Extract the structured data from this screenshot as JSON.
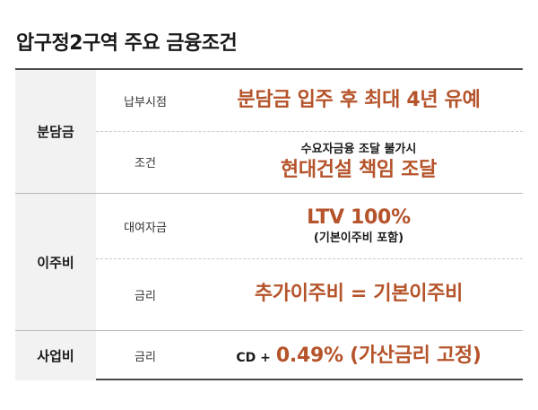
{
  "title": "압구정2구역 주요 금융조건",
  "sections": [
    {
      "category": "분담금",
      "rows": [
        {
          "label": "납부시점",
          "main": "분담금 입주 후 최대 4년 유예"
        },
        {
          "label": "조건",
          "note": "수요자금융 조달 불가시",
          "main": "현대건설 책임 조달"
        }
      ]
    },
    {
      "category": "이주비",
      "rows": [
        {
          "label": "대여자금",
          "main": "LTV 100%",
          "note": "(기본이주비 포함)"
        },
        {
          "label": "금리",
          "main": "추가이주비 = 기본이주비"
        }
      ]
    },
    {
      "category": "사업비",
      "rows": [
        {
          "label": "금리",
          "prefix": "CD +",
          "main": "0.49% (가산금리 고정)"
        }
      ]
    }
  ],
  "colors": {
    "accent": "#b5532a",
    "category_bg": "#f2f2f2",
    "rule": "#4a4a4a"
  }
}
